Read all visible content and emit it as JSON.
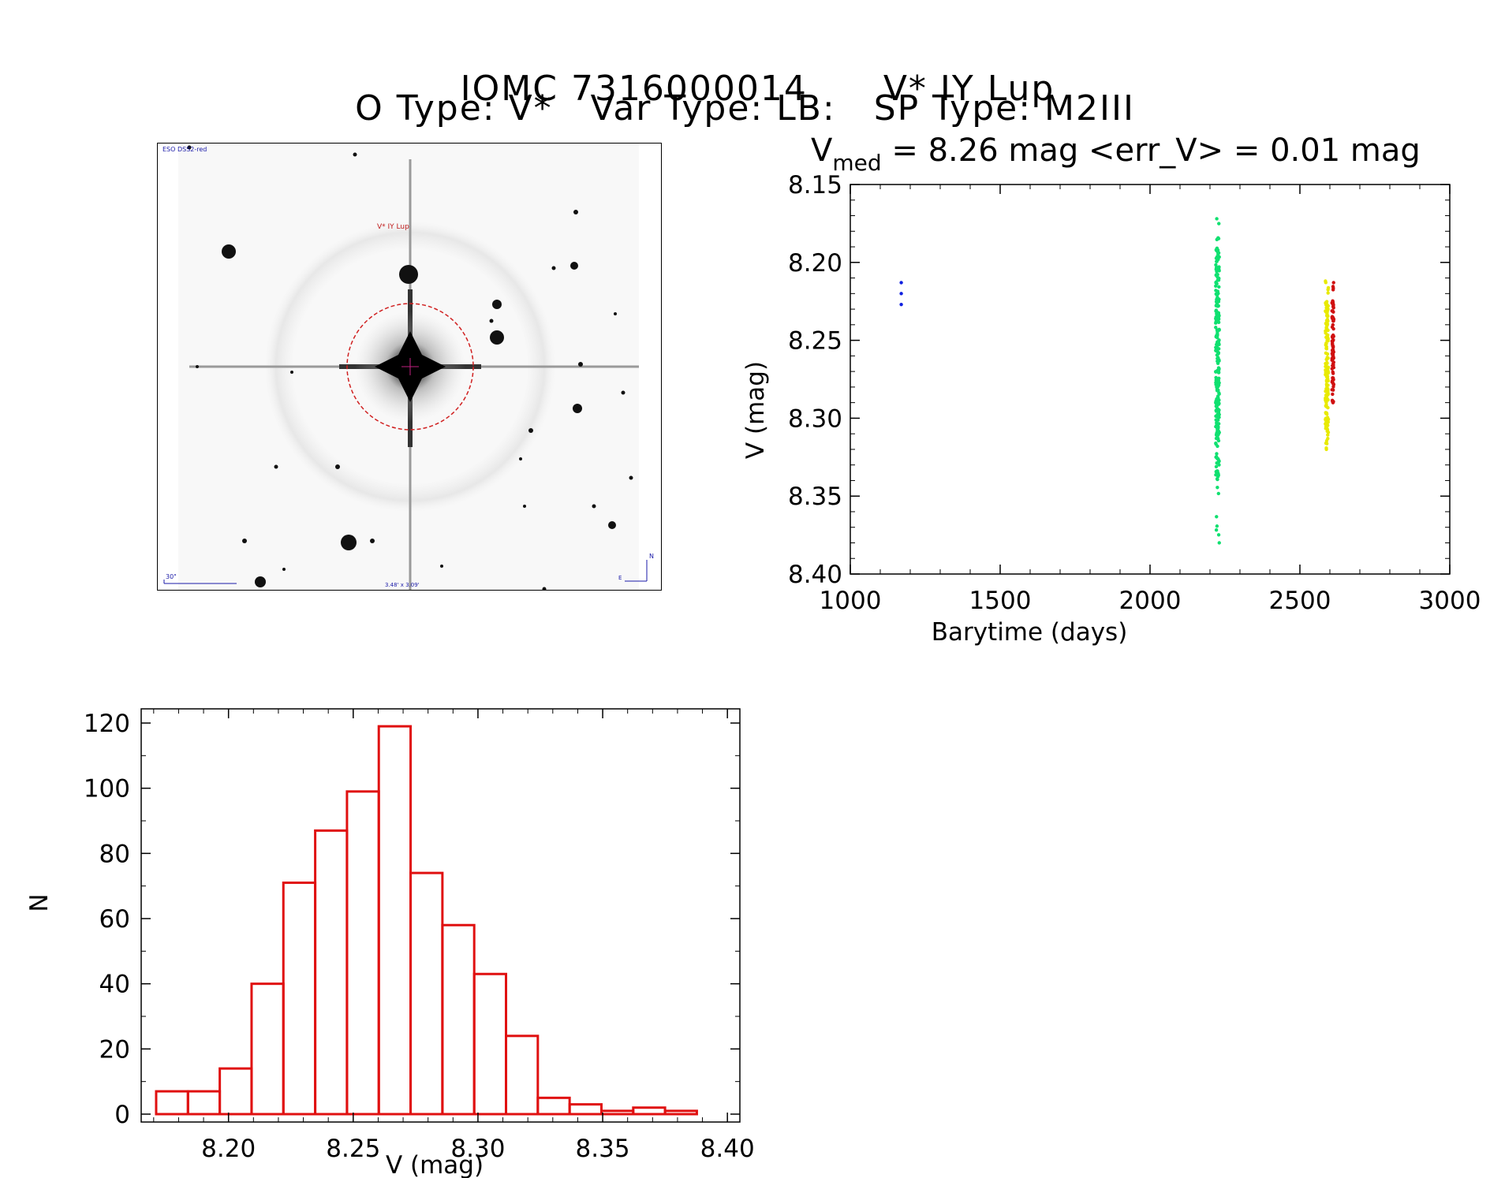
{
  "header": {
    "title_left": "IOMC 7316000014",
    "title_right": "V* IY Lup",
    "subtitle": "O Type: V*   Var Type: LB:   SP Type: M2III"
  },
  "finder_chart": {
    "survey_label": "ESO DSS2-red",
    "target_label": "V* IY Lup",
    "scale_label": "30\"",
    "field_label": "3.48' x 3.09'",
    "north_label": "N",
    "east_label": "E"
  },
  "colors": {
    "series_1": "#1020e0",
    "series_2": "#10e070",
    "series_3": "#e8ea00",
    "series_4": "#d01010",
    "histogram": "#e01010"
  },
  "chart_data": [
    {
      "type": "scatter",
      "title": "V_med = 8.26 mag <err_V> = 0.01 mag",
      "title_main": "V",
      "title_sub": "med",
      "title_rest": " = 8.26 mag <err_V> = 0.01 mag",
      "xlabel": "Barytime (days)",
      "ylabel": "V (mag)",
      "xlim": [
        1000,
        3000
      ],
      "ylim": [
        8.15,
        8.4
      ],
      "y_inverted": true,
      "x_ticks": [
        "1000",
        "1500",
        "2000",
        "2500",
        "3000"
      ],
      "y_ticks": [
        "8.15",
        "8.20",
        "8.25",
        "8.30",
        "8.35",
        "8.40"
      ],
      "series": [
        {
          "color": "#1020e0",
          "x": [
            1170,
            1170,
            1170
          ],
          "y": [
            8.213,
            8.22,
            8.227
          ]
        },
        {
          "color": "#10e070",
          "x_center": 2225,
          "x_spread": 6,
          "y_min": 8.172,
          "y_max": 8.38,
          "y_dense": [
            8.19,
            8.34
          ],
          "count": 250
        },
        {
          "color": "#e8ea00",
          "x_center": 2590,
          "x_spread": 5,
          "y_min": 8.212,
          "y_max": 8.32,
          "y_dense": [
            8.225,
            8.31
          ],
          "count": 160
        },
        {
          "color": "#d01010",
          "x_center": 2610,
          "x_spread": 3,
          "y_min": 8.213,
          "y_max": 8.29,
          "y_dense": [
            8.225,
            8.28
          ],
          "count": 90
        }
      ]
    },
    {
      "type": "bar",
      "subtype": "histogram",
      "xlabel": "V (mag)",
      "ylabel": "N",
      "xlim": [
        8.165,
        8.405
      ],
      "ylim": [
        0,
        125
      ],
      "x_ticks": [
        "8.20",
        "8.25",
        "8.30",
        "8.35",
        "8.40"
      ],
      "y_ticks": [
        "0",
        "20",
        "40",
        "60",
        "80",
        "100",
        "120"
      ],
      "bin_start": 8.171,
      "bin_width": 0.01275,
      "values": [
        7,
        7,
        14,
        40,
        71,
        87,
        99,
        119,
        74,
        58,
        43,
        24,
        5,
        3,
        1,
        2,
        1
      ]
    }
  ]
}
